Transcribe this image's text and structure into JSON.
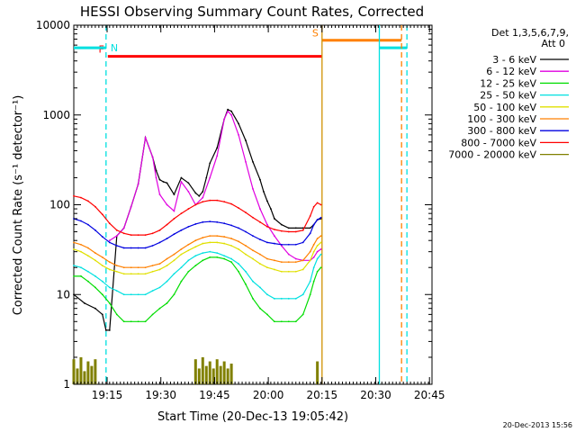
{
  "chart_data": {
    "type": "line",
    "title": "HESSI Observing Summary Count Rates, Corrected",
    "xlabel": "Start Time (20-Dec-13 19:05:42)",
    "ylabel": "Corrected Count Rate (s⁻¹ detector⁻¹)",
    "yscale": "log",
    "ylim": [
      1,
      10000
    ],
    "xlim_min": [
      0,
      100
    ],
    "x_unit": "minutes after 19:05:42",
    "x_ticks": [
      {
        "min": 9.3,
        "label": "19:15"
      },
      {
        "min": 24.3,
        "label": "19:30"
      },
      {
        "min": 39.3,
        "label": "19:45"
      },
      {
        "min": 54.3,
        "label": "20:00"
      },
      {
        "min": 69.3,
        "label": "20:15"
      },
      {
        "min": 84.3,
        "label": "20:30"
      },
      {
        "min": 99.3,
        "label": "20:45"
      }
    ],
    "y_ticks": [
      {
        "value": 1,
        "label": "1"
      },
      {
        "value": 10,
        "label": "10"
      },
      {
        "value": 100,
        "label": "100"
      },
      {
        "value": 1000,
        "label": "1000"
      },
      {
        "value": 10000,
        "label": "10000"
      }
    ],
    "legend": {
      "placement": "right",
      "header": [
        "Det 1,3,5,6,7,9,",
        "Att 0"
      ]
    },
    "series": [
      {
        "name": "3 - 6 keV",
        "color": "#000000",
        "x": [
          0,
          3,
          6,
          8,
          9,
          10,
          12,
          14,
          16,
          18,
          20,
          22,
          23,
          24,
          25,
          26,
          28,
          30,
          32,
          34,
          35,
          36,
          37,
          38,
          40,
          42,
          43,
          44,
          46,
          48,
          50,
          52,
          53,
          54,
          55,
          56,
          58,
          60,
          62,
          64,
          66,
          67,
          68,
          69
        ],
        "y": [
          10,
          8,
          7,
          6,
          4,
          4,
          45,
          55,
          95,
          170,
          560,
          340,
          240,
          190,
          180,
          175,
          130,
          200,
          175,
          135,
          125,
          140,
          200,
          290,
          430,
          900,
          1150,
          1100,
          800,
          520,
          300,
          190,
          140,
          110,
          90,
          70,
          60,
          55,
          55,
          55,
          55,
          60,
          68,
          70
        ]
      },
      {
        "name": "6 - 12 keV",
        "color": "#e000e0",
        "x": [
          10,
          12,
          14,
          16,
          18,
          20,
          22,
          23,
          24,
          26,
          28,
          30,
          32,
          34,
          36,
          38,
          40,
          42,
          43,
          44,
          46,
          48,
          50,
          52,
          54,
          56,
          58,
          60,
          62,
          64,
          66,
          67,
          68,
          69
        ],
        "y": [
          40,
          45,
          55,
          95,
          170,
          560,
          340,
          200,
          130,
          100,
          85,
          180,
          140,
          100,
          120,
          200,
          350,
          900,
          1100,
          1000,
          600,
          300,
          150,
          90,
          60,
          45,
          35,
          28,
          25,
          24,
          24,
          26,
          30,
          32
        ]
      },
      {
        "name": "12 - 25 keV",
        "color": "#00dd00",
        "x": [
          0,
          2,
          4,
          6,
          8,
          10,
          12,
          14,
          16,
          18,
          20,
          22,
          24,
          26,
          28,
          30,
          32,
          34,
          36,
          38,
          40,
          42,
          44,
          46,
          48,
          50,
          52,
          54,
          56,
          58,
          60,
          62,
          64,
          66,
          67,
          68,
          69
        ],
        "y": [
          16,
          16,
          14,
          12,
          10,
          8,
          6,
          5,
          5,
          5,
          5,
          6,
          7,
          8,
          10,
          14,
          18,
          21,
          24,
          26,
          26,
          25,
          23,
          18,
          13,
          9,
          7,
          6,
          5,
          5,
          5,
          5,
          6,
          10,
          14,
          18,
          20
        ]
      },
      {
        "name": "25 - 50 keV",
        "color": "#00e0e0",
        "x": [
          0,
          2,
          4,
          6,
          8,
          10,
          12,
          14,
          16,
          18,
          20,
          22,
          24,
          26,
          28,
          30,
          32,
          34,
          36,
          38,
          40,
          42,
          44,
          46,
          48,
          50,
          52,
          54,
          56,
          58,
          60,
          62,
          64,
          66,
          67,
          68,
          69
        ],
        "y": [
          21,
          20,
          18,
          16,
          14,
          12,
          11,
          10,
          10,
          10,
          10,
          11,
          12,
          14,
          17,
          20,
          24,
          27,
          29,
          30,
          29,
          27,
          25,
          22,
          18,
          14,
          12,
          10,
          9,
          9,
          9,
          9,
          10,
          14,
          20,
          25,
          28
        ]
      },
      {
        "name": "50 - 100 keV",
        "color": "#e0e000",
        "x": [
          0,
          2,
          4,
          6,
          8,
          10,
          12,
          14,
          16,
          18,
          20,
          22,
          24,
          26,
          28,
          30,
          32,
          34,
          36,
          38,
          40,
          42,
          44,
          46,
          48,
          50,
          52,
          54,
          56,
          58,
          60,
          62,
          64,
          66,
          67,
          68,
          69
        ],
        "y": [
          32,
          30,
          27,
          24,
          21,
          19,
          18,
          17,
          17,
          17,
          17,
          18,
          19,
          21,
          24,
          28,
          31,
          34,
          37,
          38,
          38,
          37,
          35,
          32,
          28,
          25,
          22,
          20,
          19,
          18,
          18,
          18,
          19,
          24,
          30,
          35,
          38
        ]
      },
      {
        "name": "100 - 300 keV",
        "color": "#ff8000",
        "x": [
          0,
          2,
          4,
          6,
          8,
          10,
          12,
          14,
          16,
          18,
          20,
          22,
          24,
          26,
          28,
          30,
          32,
          34,
          36,
          38,
          40,
          42,
          44,
          46,
          48,
          50,
          52,
          54,
          56,
          58,
          60,
          62,
          64,
          66,
          67,
          68,
          69
        ],
        "y": [
          38,
          36,
          33,
          29,
          26,
          23,
          21,
          20,
          20,
          20,
          20,
          21,
          22,
          25,
          28,
          32,
          36,
          40,
          43,
          45,
          45,
          44,
          42,
          39,
          35,
          31,
          28,
          25,
          24,
          23,
          23,
          23,
          24,
          30,
          36,
          42,
          45
        ]
      },
      {
        "name": "300 - 800 keV",
        "color": "#0000e0",
        "x": [
          0,
          2,
          4,
          6,
          8,
          10,
          12,
          14,
          16,
          18,
          20,
          22,
          24,
          26,
          28,
          30,
          32,
          34,
          36,
          38,
          40,
          42,
          44,
          46,
          48,
          50,
          52,
          54,
          56,
          58,
          60,
          62,
          64,
          66,
          67,
          68,
          69
        ],
        "y": [
          70,
          66,
          60,
          52,
          44,
          38,
          35,
          33,
          33,
          33,
          33,
          35,
          38,
          42,
          47,
          52,
          57,
          61,
          64,
          65,
          64,
          62,
          59,
          55,
          50,
          45,
          41,
          38,
          37,
          36,
          36,
          36,
          38,
          48,
          60,
          68,
          72
        ]
      },
      {
        "name": "800 - 7000 keV",
        "color": "#ff0000",
        "x": [
          0,
          2,
          4,
          6,
          8,
          10,
          12,
          14,
          16,
          18,
          20,
          22,
          24,
          26,
          28,
          30,
          32,
          34,
          36,
          38,
          40,
          42,
          44,
          46,
          48,
          50,
          52,
          54,
          56,
          58,
          60,
          62,
          64,
          66,
          67,
          68,
          69
        ],
        "y": [
          125,
          120,
          110,
          95,
          78,
          62,
          52,
          48,
          46,
          46,
          46,
          48,
          52,
          60,
          70,
          80,
          90,
          100,
          108,
          112,
          112,
          108,
          102,
          92,
          82,
          72,
          64,
          57,
          53,
          51,
          50,
          50,
          52,
          75,
          95,
          105,
          100
        ]
      },
      {
        "name": "7000 - 20000 keV",
        "color": "#808000",
        "x": [
          0,
          1,
          2,
          3,
          4,
          5,
          6,
          34,
          35,
          36,
          37,
          38,
          39,
          40,
          41,
          42,
          43,
          44,
          68
        ],
        "y": [
          1.9,
          1.5,
          2.0,
          1.4,
          1.8,
          1.6,
          1.9,
          1.9,
          1.5,
          2.0,
          1.6,
          1.8,
          1.5,
          1.9,
          1.6,
          1.8,
          1.5,
          1.7,
          1.8
        ]
      }
    ],
    "bars": [
      {
        "label": "F",
        "color": "#ff0000",
        "x_start": 9.5,
        "x_end": 69.3,
        "y": 4500
      },
      {
        "label": "S",
        "color": "#ff8000",
        "x_start": 69.3,
        "x_end": 91.5,
        "y": 6800
      },
      {
        "label": "N",
        "color": "#00e0e0",
        "x_start": 0,
        "x_end": 9.0,
        "y": 5600
      },
      {
        "label": "",
        "color": "#00e0e0",
        "x_start": 85.3,
        "x_end": 93.0,
        "y": 5600
      }
    ],
    "vlines": [
      {
        "x": 9.0,
        "color": "#00e0e0",
        "dashed": true
      },
      {
        "x": 69.3,
        "color": "#d09000",
        "dashed": false
      },
      {
        "x": 85.3,
        "color": "#00e0e0",
        "dashed": false
      },
      {
        "x": 91.5,
        "color": "#ff8000",
        "dashed": true
      },
      {
        "x": 93.0,
        "color": "#00e0e0",
        "dashed": true
      }
    ]
  },
  "footer": {
    "timestamp": "20-Dec-2013 15:56"
  }
}
